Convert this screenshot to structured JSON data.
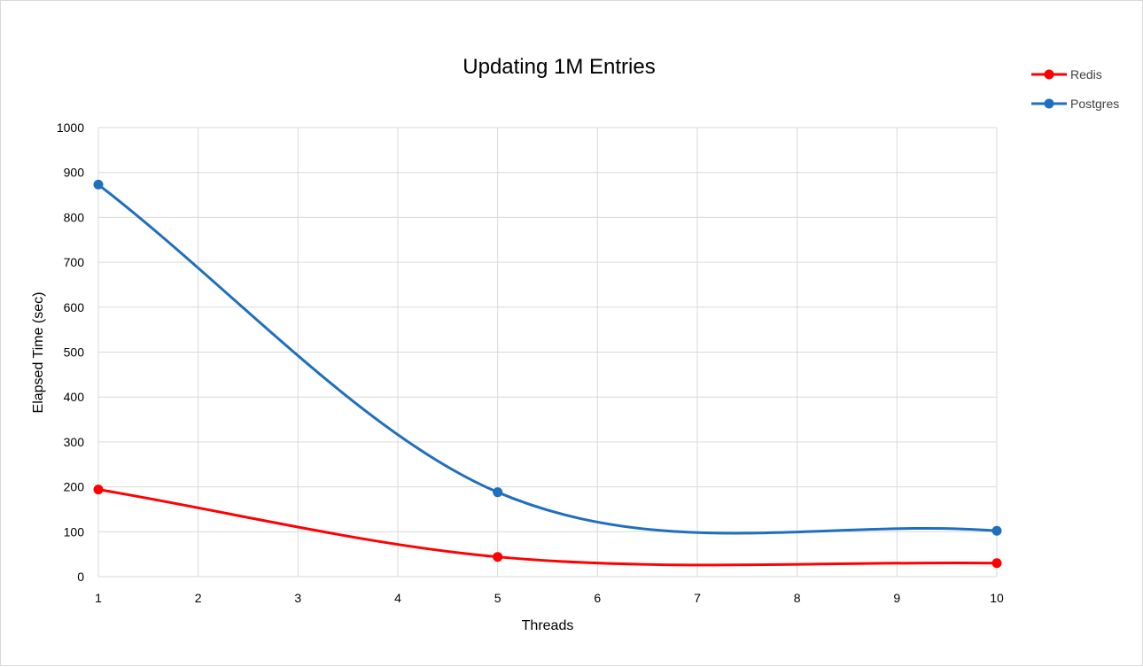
{
  "chart_data": {
    "type": "line",
    "title": "Updating 1M Entries",
    "xlabel": "Threads",
    "ylabel": "Elapsed Time (sec)",
    "xlim": [
      1,
      10
    ],
    "ylim": [
      0,
      1000
    ],
    "x_ticks": [
      1,
      2,
      3,
      4,
      5,
      6,
      7,
      8,
      9,
      10
    ],
    "y_ticks": [
      0,
      100,
      200,
      300,
      400,
      500,
      600,
      700,
      800,
      900,
      1000
    ],
    "grid": true,
    "smooth": true,
    "legend_position": "top-right",
    "series": [
      {
        "name": "Redis",
        "color": "#ff0000",
        "x": [
          1,
          5,
          10
        ],
        "y": [
          194,
          44,
          30
        ]
      },
      {
        "name": "Postgres",
        "color": "#1f6fbf",
        "x": [
          1,
          5,
          10
        ],
        "y": [
          873,
          188,
          102
        ]
      }
    ]
  }
}
